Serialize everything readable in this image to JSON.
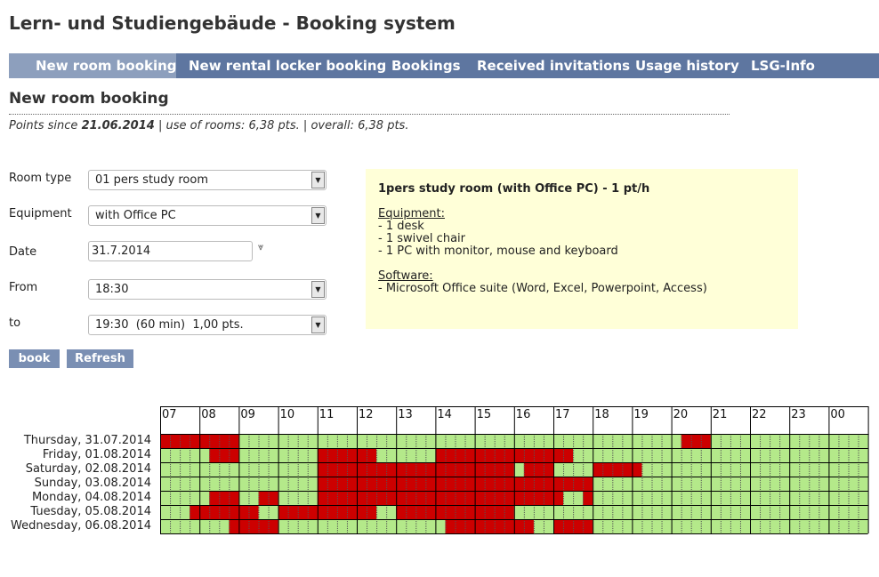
{
  "header": {
    "title": "Lern- und Studiengebäude - Booking system"
  },
  "nav": {
    "items": [
      {
        "label": "New room booking",
        "active": true
      },
      {
        "label": "New rental locker booking"
      },
      {
        "label": "Bookings"
      },
      {
        "label": "Received invitations"
      },
      {
        "label": "Usage history"
      },
      {
        "label": "LSG-Info"
      }
    ]
  },
  "page": {
    "heading": "New room booking",
    "points": {
      "prefix": "Points since ",
      "date": "21.06.2014",
      "suffix": " | use of rooms: 6,38 pts. | overall: 6,38 pts."
    }
  },
  "form": {
    "room_type": {
      "label": "Room type",
      "value": "01 pers study room"
    },
    "equipment": {
      "label": "Equipment",
      "value": "with Office PC"
    },
    "date": {
      "label": "Date",
      "value": "31.7.2014"
    },
    "from": {
      "label": "From",
      "value": "18:30"
    },
    "to": {
      "label": "to",
      "value": "19:30  (60 min)  1,00 pts."
    },
    "book_label": "book",
    "refresh_label": "Refresh"
  },
  "info": {
    "title": "1pers study room (with Office PC) - 1 pt/h",
    "equipment_heading": "Equipment:",
    "equipment": [
      "- 1 desk",
      "- 1 swivel chair",
      "- 1 PC with monitor, mouse and keyboard"
    ],
    "software_heading": "Software:",
    "software": [
      "- Microsoft Office suite (Word, Excel, Powerpoint, Access)"
    ]
  },
  "schedule": {
    "hours": [
      "07",
      "08",
      "09",
      "10",
      "11",
      "12",
      "13",
      "14",
      "15",
      "16",
      "17",
      "18",
      "19",
      "20",
      "21",
      "22",
      "23",
      "00"
    ],
    "colors": {
      "free": "#b4e98a",
      "booked": "#cc0000"
    },
    "days": [
      {
        "label": "Thursday, 31.07.2014",
        "booked": [
          [
            7,
            9
          ],
          [
            20.25,
            21
          ]
        ]
      },
      {
        "label": "Friday, 01.08.2014",
        "booked": [
          [
            8.25,
            9
          ],
          [
            11,
            12.5
          ],
          [
            14,
            17.5
          ]
        ]
      },
      {
        "label": "Saturday, 02.08.2014",
        "booked": [
          [
            11,
            16
          ],
          [
            16.25,
            17
          ],
          [
            18,
            19.25
          ]
        ]
      },
      {
        "label": "Sunday, 03.08.2014",
        "booked": [
          [
            11,
            18
          ]
        ]
      },
      {
        "label": "Monday, 04.08.2014",
        "booked": [
          [
            8.25,
            9
          ],
          [
            9.5,
            10
          ],
          [
            11,
            12
          ],
          [
            12,
            17.25
          ],
          [
            17.75,
            18
          ]
        ]
      },
      {
        "label": "Tuesday, 05.08.2014",
        "booked": [
          [
            7.75,
            9.5
          ],
          [
            10,
            12.5
          ],
          [
            13,
            16
          ]
        ]
      },
      {
        "label": "Wednesday, 06.08.2014",
        "booked": [
          [
            8.75,
            10
          ],
          [
            14.25,
            16.5
          ],
          [
            17,
            18
          ]
        ]
      }
    ]
  }
}
